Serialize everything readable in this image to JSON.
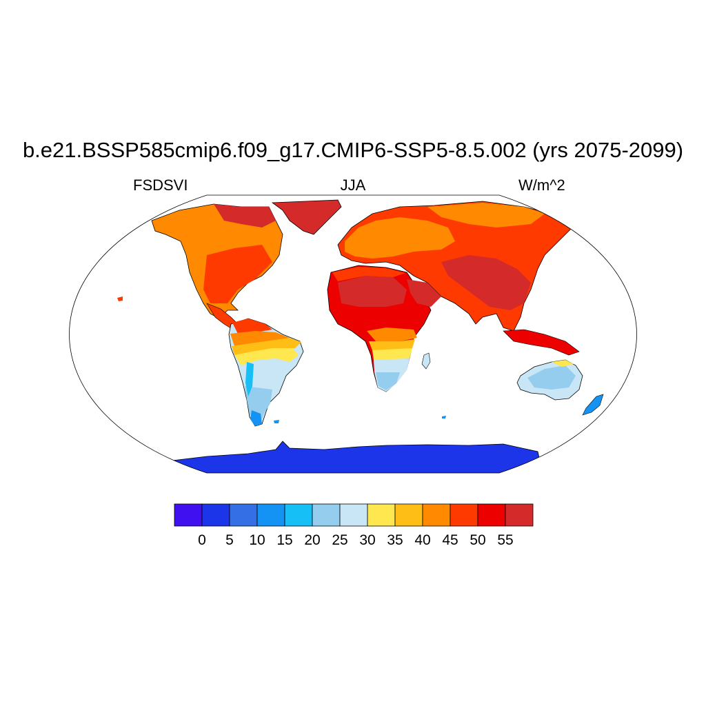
{
  "title": "b.e21.BSSP585cmip6.f09_g17.CMIP6-SSP5-8.5.002 (yrs 2075-2099)",
  "left_label": "FSDSVI",
  "center_label": "JJA",
  "right_label": "W/m^2",
  "colorbar": {
    "levels": [
      "0",
      "5",
      "10",
      "15",
      "20",
      "25",
      "30",
      "35",
      "40",
      "45",
      "50",
      "55"
    ],
    "colors": [
      "#4010f0",
      "#1c35e8",
      "#356fe6",
      "#1593f5",
      "#16c0f7",
      "#94cdee",
      "#c8e6f6",
      "#ffe74f",
      "#ffbe16",
      "#ff8900",
      "#ff3a00",
      "#ec0000",
      "#d52a2a"
    ]
  },
  "legend_colors": {
    "land_outline": "#000000"
  }
}
